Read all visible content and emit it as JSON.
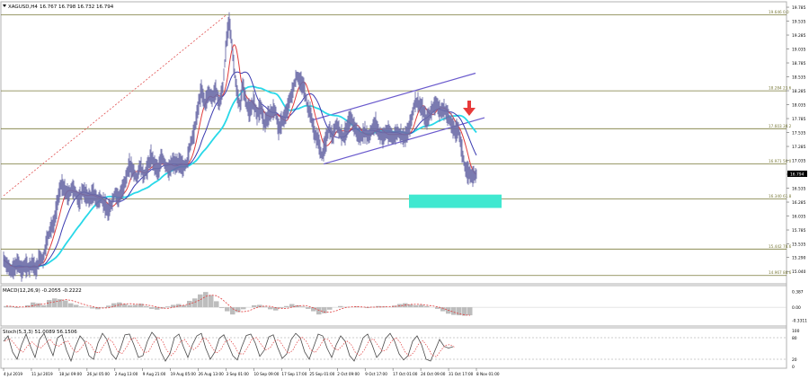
{
  "header": {
    "symbol": "XAGUSD,H4",
    "ohlc": "16.767 16.798 16.732 16.794"
  },
  "colors": {
    "candles": "#6c6ca8",
    "ma_fast": "#e03c3c",
    "ma_slow": "#3a3ab0",
    "ma_long": "#28d8e8",
    "channel": "#6a5acd",
    "target_zone": "#40e8d0",
    "arrow": "#e83a3a",
    "fib": "#7a7a3a",
    "grid": "#d8d8d8"
  },
  "chart_data": [
    {
      "type": "line",
      "panel": "price",
      "yrange": [
        14.85,
        19.85
      ],
      "price_axis_ticks": [
        "19.785",
        "19.535",
        "19.285",
        "19.035",
        "18.785",
        "18.535",
        "18.285",
        "18.035",
        "17.785",
        "17.535",
        "17.285",
        "17.035",
        "16.785",
        "16.535",
        "16.285",
        "16.035",
        "15.785",
        "15.535",
        "15.290",
        "15.040",
        "14.790"
      ],
      "current_price_label": "16.794",
      "time_axis_labels": [
        "4 Jul 2019",
        "11 Jul 2019",
        "18 Jul 09:00",
        "26 Jul 05:00",
        "2 Aug 13:00",
        "9 Aug 21:00",
        "19 Aug 05:00",
        "26 Aug 13:00",
        "3 Sep 01:00",
        "10 Sep 09:00",
        "17 Sep 17:00",
        "25 Sep 01:00",
        "2 Oct 09:00",
        "9 Oct 17:00",
        "17 Oct 01:00",
        "24 Oct 09:00",
        "31 Oct 17:00",
        "8 Nov 01:00"
      ],
      "fib_levels": [
        {
          "price": 19.646,
          "label": "19.646  0.0"
        },
        {
          "price": 18.284,
          "label": "18.284  23.6"
        },
        {
          "price": 17.603,
          "label": "17.603  38.2"
        },
        {
          "price": 16.971,
          "label": "16.971  50.0"
        },
        {
          "price": 16.34,
          "label": "16.340  61.8"
        },
        {
          "price": 15.442,
          "label": "15.442  78.6"
        },
        {
          "price": 14.967,
          "label": "14.967  88.6"
        }
      ],
      "price_path": [
        [
          0,
          15.25
        ],
        [
          4,
          15.15
        ],
        [
          8,
          15.05
        ],
        [
          12,
          15.1
        ],
        [
          16,
          15.2
        ],
        [
          20,
          15.05
        ],
        [
          24,
          15.15
        ],
        [
          28,
          15.1
        ],
        [
          32,
          15.2
        ],
        [
          36,
          15.05
        ],
        [
          40,
          15.3
        ],
        [
          44,
          15.25
        ],
        [
          48,
          15.6
        ],
        [
          52,
          15.8
        ],
        [
          56,
          15.9
        ],
        [
          60,
          16.3
        ],
        [
          64,
          16.6
        ],
        [
          68,
          16.5
        ],
        [
          72,
          16.4
        ],
        [
          76,
          16.55
        ],
        [
          80,
          16.45
        ],
        [
          84,
          16.3
        ],
        [
          88,
          16.5
        ],
        [
          92,
          16.4
        ],
        [
          96,
          16.35
        ],
        [
          100,
          16.45
        ],
        [
          104,
          16.3
        ],
        [
          108,
          16.35
        ],
        [
          112,
          16.25
        ],
        [
          116,
          16.1
        ],
        [
          120,
          16.25
        ],
        [
          124,
          16.45
        ],
        [
          128,
          16.35
        ],
        [
          132,
          16.5
        ],
        [
          136,
          16.7
        ],
        [
          140,
          16.95
        ],
        [
          144,
          16.85
        ],
        [
          148,
          16.7
        ],
        [
          152,
          16.95
        ],
        [
          156,
          16.75
        ],
        [
          160,
          16.9
        ],
        [
          164,
          17.1
        ],
        [
          168,
          16.95
        ],
        [
          172,
          16.85
        ],
        [
          176,
          17.1
        ],
        [
          180,
          16.95
        ],
        [
          184,
          16.85
        ],
        [
          188,
          17.0
        ],
        [
          192,
          16.95
        ],
        [
          196,
          17.0
        ],
        [
          200,
          16.9
        ],
        [
          204,
          17.0
        ],
        [
          208,
          17.35
        ],
        [
          212,
          17.55
        ],
        [
          216,
          17.95
        ],
        [
          220,
          18.3
        ],
        [
          224,
          18.05
        ],
        [
          228,
          18.25
        ],
        [
          232,
          18.15
        ],
        [
          236,
          18.3
        ],
        [
          240,
          18.05
        ],
        [
          244,
          18.35
        ],
        [
          248,
          19.2
        ],
        [
          251,
          19.55
        ],
        [
          254,
          19.1
        ],
        [
          257,
          18.6
        ],
        [
          260,
          18.2
        ],
        [
          263,
          18.0
        ],
        [
          266,
          18.4
        ],
        [
          270,
          18.05
        ],
        [
          274,
          17.9
        ],
        [
          278,
          18.1
        ],
        [
          282,
          17.85
        ],
        [
          286,
          18.0
        ],
        [
          290,
          17.7
        ],
        [
          294,
          17.8
        ],
        [
          298,
          17.9
        ],
        [
          302,
          17.95
        ],
        [
          306,
          17.6
        ],
        [
          310,
          17.75
        ],
        [
          314,
          17.85
        ],
        [
          318,
          18.1
        ],
        [
          322,
          18.3
        ],
        [
          326,
          18.55
        ],
        [
          330,
          18.45
        ],
        [
          334,
          18.35
        ],
        [
          338,
          18.0
        ],
        [
          342,
          17.85
        ],
        [
          346,
          17.5
        ],
        [
          350,
          17.4
        ],
        [
          354,
          17.1
        ],
        [
          358,
          17.35
        ],
        [
          362,
          17.6
        ],
        [
          366,
          17.45
        ],
        [
          370,
          17.7
        ],
        [
          374,
          17.55
        ],
        [
          378,
          17.45
        ],
        [
          382,
          17.6
        ],
        [
          386,
          17.8
        ],
        [
          390,
          17.65
        ],
        [
          394,
          17.5
        ],
        [
          398,
          17.45
        ],
        [
          402,
          17.55
        ],
        [
          406,
          17.45
        ],
        [
          410,
          17.6
        ],
        [
          414,
          17.7
        ],
        [
          418,
          17.5
        ],
        [
          422,
          17.45
        ],
        [
          426,
          17.55
        ],
        [
          430,
          17.5
        ],
        [
          434,
          17.45
        ],
        [
          438,
          17.55
        ],
        [
          442,
          17.5
        ],
        [
          446,
          17.45
        ],
        [
          450,
          17.55
        ],
        [
          454,
          17.8
        ],
        [
          458,
          18.1
        ],
        [
          462,
          18.05
        ],
        [
          466,
          17.95
        ],
        [
          470,
          17.75
        ],
        [
          474,
          17.85
        ],
        [
          478,
          18.0
        ],
        [
          482,
          18.05
        ],
        [
          486,
          17.9
        ],
        [
          490,
          17.95
        ],
        [
          494,
          17.85
        ],
        [
          498,
          17.7
        ],
        [
          502,
          17.55
        ],
        [
          506,
          17.6
        ],
        [
          510,
          17.2
        ],
        [
          514,
          16.85
        ],
        [
          518,
          16.8
        ],
        [
          522,
          16.75
        ],
        [
          526,
          16.79
        ]
      ],
      "trend_dotted": [
        [
          0,
          16.4
        ],
        [
          248,
          19.65
        ]
      ],
      "channel_upper": [
        [
          342,
          17.75
        ],
        [
          525,
          18.6
        ]
      ],
      "channel_lower": [
        [
          356,
          16.97
        ],
        [
          535,
          17.8
        ]
      ],
      "target_zone_prices": [
        16.18,
        16.42
      ],
      "arrow_note": "bearish arrow at channel break"
    },
    {
      "type": "bar",
      "panel": "macd",
      "label": "MACD(12,26,9) -0.2055 -0.2222",
      "axis_ticks": [
        "0.387",
        "0.00",
        "-0.3311"
      ],
      "yrange": [
        -0.4,
        0.45
      ],
      "histogram_step": 6,
      "values": [
        0.03,
        0.02,
        -0.02,
        0.0,
        0.05,
        0.12,
        0.1,
        0.05,
        0.18,
        0.22,
        0.2,
        0.17,
        0.1,
        0.06,
        0.02,
        0.01,
        -0.03,
        -0.05,
        -0.01,
        0.04,
        0.1,
        0.12,
        0.08,
        0.05,
        0.06,
        0.09,
        0.03,
        -0.04,
        -0.06,
        -0.03,
        0.02,
        0.06,
        0.08,
        0.05,
        0.16,
        0.22,
        0.32,
        0.38,
        0.3,
        0.15,
        -0.02,
        -0.1,
        -0.18,
        -0.12,
        -0.05,
        0.0,
        0.05,
        0.06,
        0.02,
        -0.05,
        -0.08,
        -0.02,
        0.03,
        0.08,
        0.05,
        0.02,
        -0.04,
        -0.1,
        -0.18,
        -0.15,
        -0.06,
        0.0,
        0.03,
        0.01,
        0.0,
        0.02,
        0.0,
        -0.02,
        0.01,
        0.03,
        0.02,
        0.0,
        0.04,
        0.08,
        0.1,
        0.07,
        0.05,
        0.06,
        0.03,
        0.0,
        -0.04,
        -0.1,
        -0.16,
        -0.19,
        -0.2,
        -0.21,
        -0.2
      ]
    },
    {
      "type": "line",
      "panel": "stochastic",
      "label": "Stoch(5,3,3) 51.0089 56.1506",
      "axis_ticks": [
        "100",
        "80",
        "20",
        "0"
      ],
      "yrange": [
        0,
        100
      ],
      "sample_step": 5,
      "values": [
        70,
        85,
        40,
        20,
        60,
        90,
        55,
        25,
        75,
        92,
        60,
        30,
        80,
        88,
        45,
        15,
        55,
        85,
        70,
        30,
        20,
        65,
        92,
        75,
        35,
        20,
        50,
        88,
        90,
        60,
        25,
        30,
        70,
        95,
        80,
        40,
        15,
        35,
        80,
        90,
        55,
        25,
        60,
        85,
        92,
        50,
        20,
        40,
        78,
        88,
        60,
        30,
        18,
        55,
        86,
        90,
        65,
        28,
        45,
        82,
        88,
        52,
        22,
        35,
        75,
        92,
        80,
        40,
        20,
        55,
        90,
        85,
        50,
        25,
        60,
        85,
        70,
        30,
        15,
        45,
        80,
        90,
        60,
        25,
        40,
        78,
        92,
        70,
        35,
        18,
        30,
        70,
        85,
        60,
        20,
        15,
        45,
        75,
        56,
        51,
        55
      ]
    }
  ]
}
